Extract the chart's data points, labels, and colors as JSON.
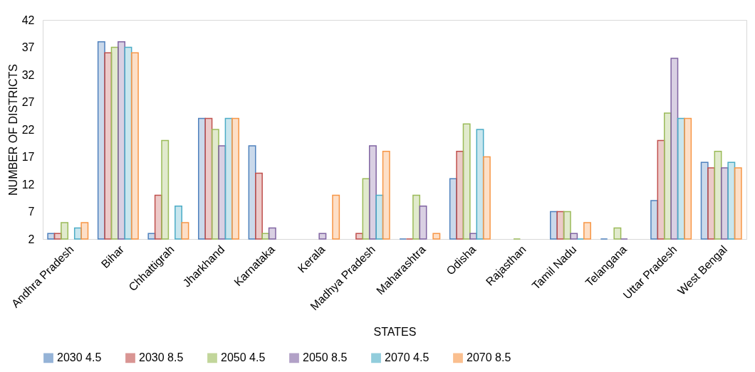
{
  "chart_data": {
    "type": "bar",
    "xlabel": "STATES",
    "ylabel": "NUMBER OF DISTRICTS",
    "categories": [
      "Andhra Pradesh",
      "Bihar",
      "Chhattigrah",
      "Jharkhand",
      "Karnataka",
      "Kerala",
      "Madhya Pradesh",
      "Maharashtra",
      "Odisha",
      "Rajasthan",
      "Tamil Nadu",
      "Telangana",
      "Uttar Pradesh",
      "West Bengal"
    ],
    "series": [
      {
        "name": "2030 4.5",
        "color": "#4f81bd",
        "values": [
          3,
          38,
          3,
          24,
          19,
          null,
          null,
          2,
          13,
          null,
          7,
          2,
          9,
          16
        ]
      },
      {
        "name": "2030 8.5",
        "color": "#c0504d",
        "values": [
          3,
          36,
          10,
          24,
          14,
          null,
          3,
          2,
          18,
          null,
          7,
          null,
          20,
          15
        ]
      },
      {
        "name": "2050 4.5",
        "color": "#9bbb59",
        "values": [
          5,
          37,
          20,
          22,
          3,
          null,
          13,
          10,
          23,
          2,
          7,
          4,
          25,
          18
        ]
      },
      {
        "name": "2050 8.5",
        "color": "#8064a2",
        "values": [
          null,
          38,
          null,
          19,
          4,
          3,
          19,
          8,
          3,
          null,
          3,
          2,
          35,
          15
        ]
      },
      {
        "name": "2070 4.5",
        "color": "#4bacc6",
        "values": [
          4,
          37,
          8,
          24,
          null,
          null,
          10,
          null,
          22,
          null,
          2,
          null,
          24,
          16
        ]
      },
      {
        "name": "2070 8.5",
        "color": "#f79646",
        "values": [
          5,
          36,
          5,
          24,
          null,
          10,
          18,
          3,
          17,
          null,
          5,
          null,
          24,
          15
        ]
      }
    ],
    "ylim": [
      2,
      42
    ],
    "yticks": [
      2,
      7,
      12,
      17,
      22,
      27,
      32,
      37,
      42
    ],
    "grid": false,
    "legend": "bottom"
  }
}
